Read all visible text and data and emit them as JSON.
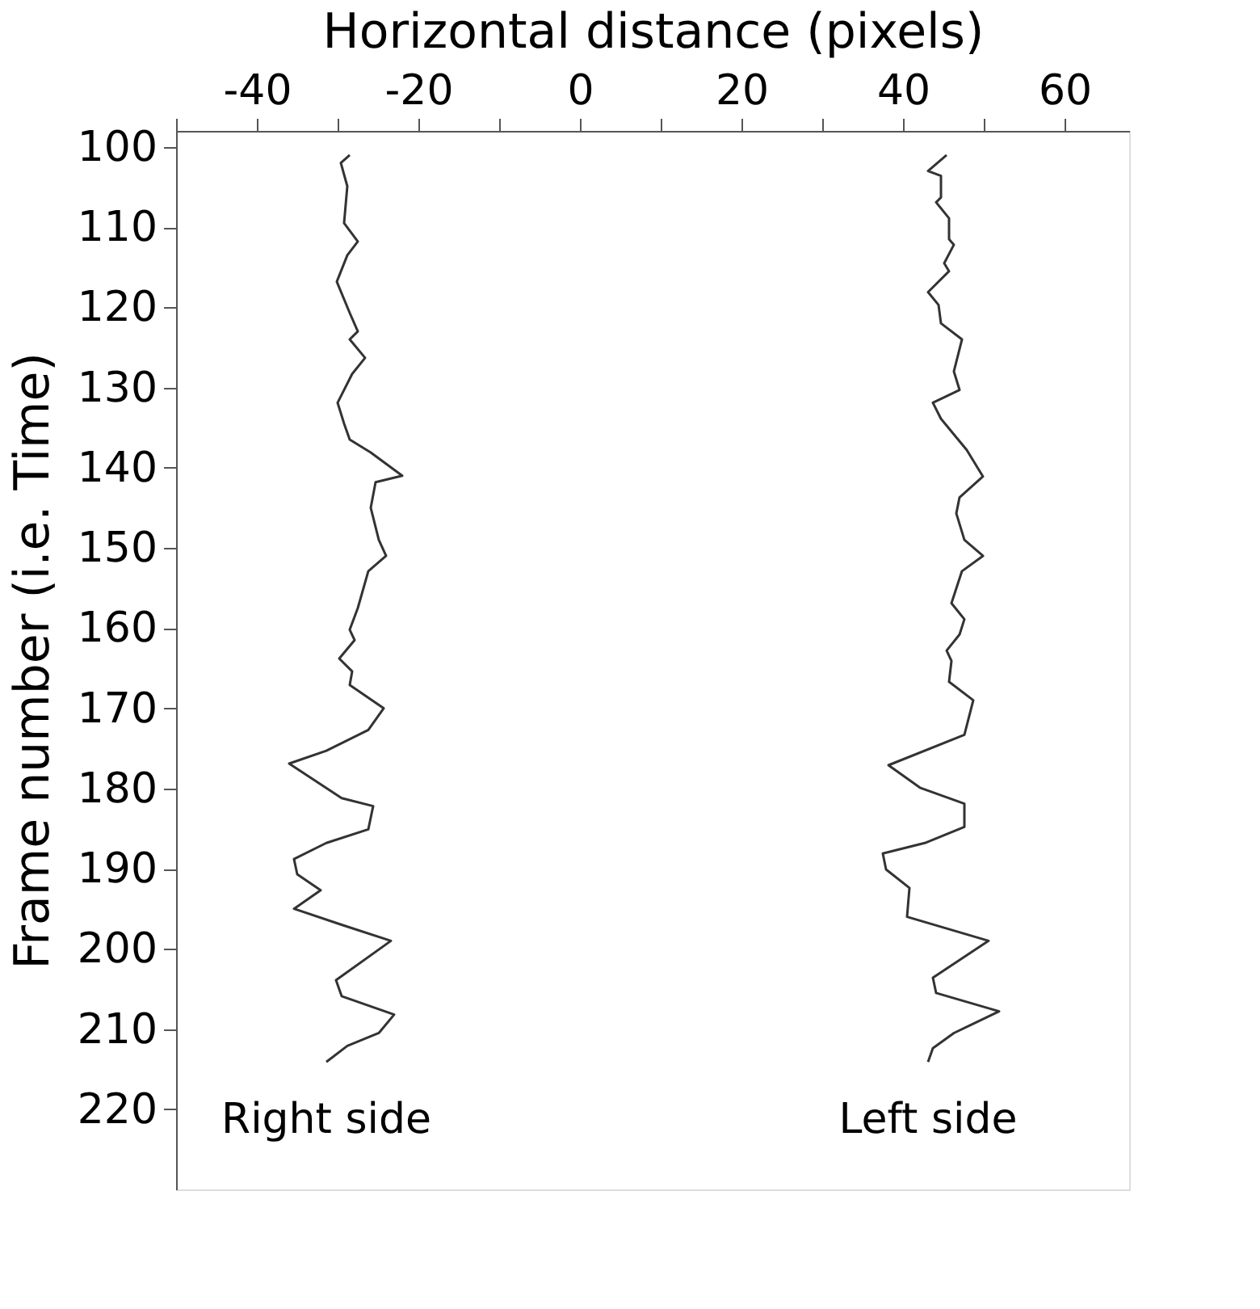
{
  "chart_data": {
    "type": "line",
    "xlabel": "Horizontal distance (pixels)",
    "ylabel": "Frame number (i.e. Time)",
    "xlim": [
      -50,
      68
    ],
    "ylim": [
      230,
      98
    ],
    "xticks": [
      {
        "value": -50,
        "label": null
      },
      -40,
      {
        "value": -30,
        "label": null
      },
      -20,
      {
        "value": -10,
        "label": null
      },
      0,
      {
        "value": 10,
        "label": null
      },
      20,
      {
        "value": 30,
        "label": null
      },
      40,
      {
        "value": 50,
        "label": null
      },
      60
    ],
    "yticks": [
      100,
      110,
      120,
      130,
      140,
      150,
      160,
      170,
      180,
      190,
      200,
      210,
      220
    ],
    "grid": false,
    "legend": false,
    "marker": "none",
    "line_style": "solid",
    "series": [
      {
        "name": "Right side",
        "color": "#333333",
        "x": [
          -28.5,
          -29.6,
          -28.8,
          -29.2,
          -27.5,
          -28.8,
          -30.1,
          -28.5,
          -27.5,
          -28.5,
          -26.6,
          -28.2,
          -30,
          -29.2,
          -28.5,
          -25.9,
          -22,
          -25.3,
          -25.9,
          -24.9,
          -24,
          -26.2,
          -27.5,
          -28.5,
          -27.9,
          -29.8,
          -28.2,
          -28.5,
          -24.3,
          -26.2,
          -31.4,
          -36,
          -29.5,
          -25.6,
          -26.2,
          -31.4,
          -35.4,
          -35,
          -32.1,
          -35.4,
          -29.5,
          -23.4,
          -30.2,
          -29.5,
          -23,
          -24.9,
          -28.8,
          -31.4
        ],
        "values": [
          101,
          102,
          104.9,
          109.5,
          111.8,
          113.5,
          116.8,
          120.7,
          123,
          124,
          126.3,
          128.3,
          131.9,
          134.5,
          136.5,
          138.1,
          141,
          141.8,
          145,
          149,
          151,
          152.9,
          157.5,
          160.2,
          161.5,
          163.8,
          165.4,
          167.1,
          170,
          172.7,
          175.3,
          176.9,
          181.2,
          182.2,
          185.1,
          186.8,
          188.8,
          190.7,
          192.7,
          195,
          197,
          199,
          203.9,
          205.9,
          208.2,
          210.5,
          212.1,
          214.1
        ]
      },
      {
        "name": "Left side",
        "color": "#333333",
        "x": [
          45.4,
          43.1,
          44.7,
          44.7,
          44.1,
          45.7,
          45.7,
          46.3,
          45.1,
          45.7,
          43.1,
          44.4,
          44.7,
          47.3,
          46.3,
          47,
          43.7,
          44.7,
          47.9,
          49.9,
          47,
          46.6,
          47.6,
          49.9,
          47.3,
          46,
          47.6,
          47,
          45.4,
          46,
          45.7,
          48.7,
          47.6,
          38.2,
          42.1,
          47.6,
          47.6,
          42.7,
          37.5,
          37.9,
          40.8,
          40.5,
          50.6,
          43.7,
          44.1,
          51.9,
          46.3,
          43.7,
          43.1
        ],
        "values": [
          101,
          103,
          103.6,
          106.3,
          106.9,
          108.9,
          111.5,
          112.2,
          114.5,
          115.5,
          118.1,
          119.7,
          122,
          124,
          128,
          130.3,
          131.9,
          133.9,
          137.8,
          141.1,
          143.7,
          145.7,
          149,
          151,
          152.9,
          156.9,
          158.9,
          160.8,
          162.8,
          164.1,
          166.7,
          169,
          173.3,
          177.1,
          179.9,
          181.9,
          184.8,
          186.8,
          188.1,
          190.1,
          192.4,
          196,
          199,
          203.6,
          205.5,
          207.8,
          210.5,
          212.4,
          214.1
        ]
      }
    ]
  }
}
